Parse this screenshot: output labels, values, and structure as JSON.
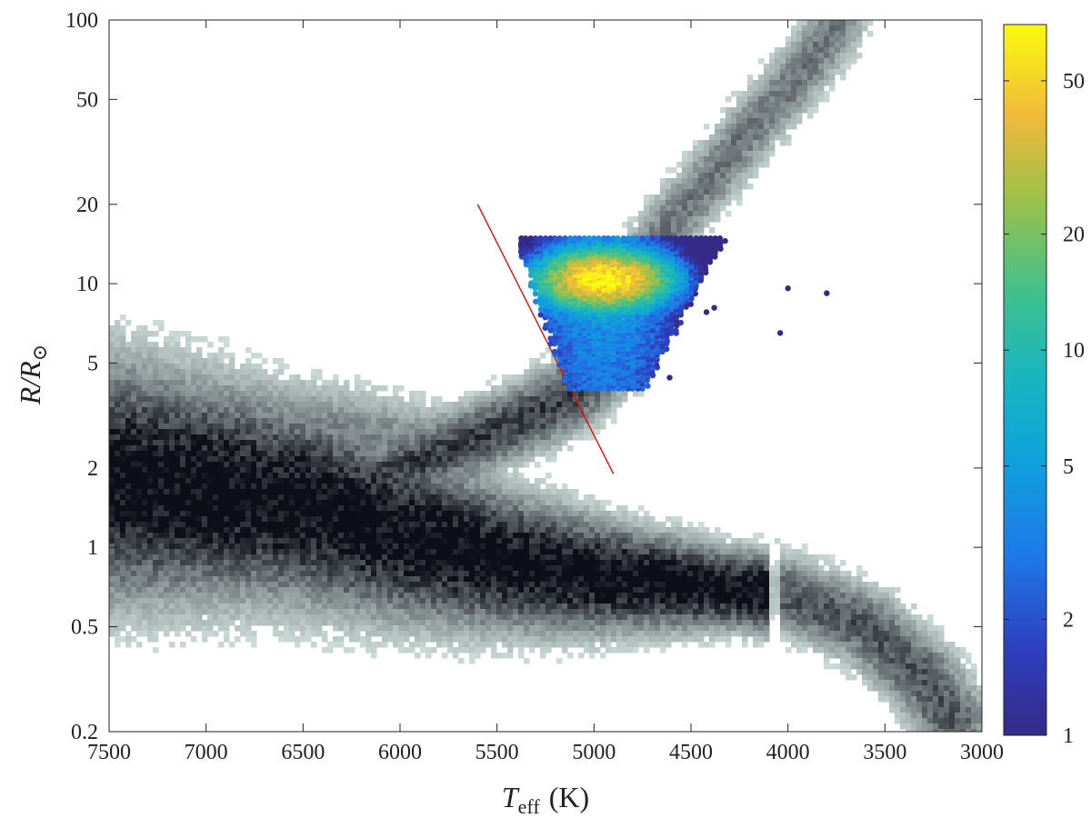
{
  "chart_data": {
    "type": "scatter",
    "title": "",
    "xlabel": {
      "main": "T",
      "sub": "eff",
      "unit": "(K)"
    },
    "ylabel": {
      "main": "R/R",
      "sub": "⊙"
    },
    "x_axis": {
      "range": [
        7500,
        3000
      ],
      "reversed": true,
      "ticks": [
        7500,
        7000,
        6500,
        6000,
        5500,
        5000,
        4500,
        4000,
        3500,
        3000
      ],
      "tick_labels": [
        "7500",
        "7000",
        "6500",
        "6000",
        "5500",
        "5000",
        "4500",
        "4000",
        "3500",
        "3000"
      ]
    },
    "y_axis": {
      "range": [
        0.2,
        100
      ],
      "scale": "log",
      "ticks": [
        0.2,
        0.5,
        1,
        2,
        5,
        10,
        20,
        50,
        100
      ],
      "tick_labels": [
        "0.2",
        "0.5",
        "1",
        "2",
        "5",
        "10",
        "20",
        "50",
        "100"
      ]
    },
    "grid": false,
    "background_density": {
      "type": "heatmap",
      "colormap": "grey (light teal-grey to near black)",
      "components": [
        {
          "name": "main-sequence",
          "points": [
            [
              7500,
              1.8
            ],
            [
              7000,
              1.65
            ],
            [
              6500,
              1.45
            ],
            [
              6000,
              1.12
            ],
            [
              5500,
              0.9
            ],
            [
              5000,
              0.78
            ],
            [
              4500,
              0.72
            ],
            [
              4000,
              0.66
            ],
            [
              3600,
              0.5
            ],
            [
              3300,
              0.32
            ],
            [
              3150,
              0.22
            ]
          ]
        },
        {
          "name": "subgiant-branch",
          "points": [
            [
              6300,
              1.6
            ],
            [
              6000,
              2.0
            ],
            [
              5600,
              2.6
            ],
            [
              5300,
              3.2
            ],
            [
              5100,
              3.9
            ],
            [
              4950,
              5.0
            ]
          ]
        },
        {
          "name": "red-giant-branch",
          "points": [
            [
              5000,
              5.5
            ],
            [
              4900,
              8
            ],
            [
              4750,
              12
            ],
            [
              4600,
              17
            ],
            [
              4400,
              25
            ],
            [
              4200,
              38
            ],
            [
              4000,
              55
            ],
            [
              3850,
              75
            ],
            [
              3750,
              95
            ]
          ]
        },
        {
          "name": "upper-main-sequence",
          "points": [
            [
              7400,
              3.8
            ],
            [
              7000,
              3.2
            ],
            [
              6500,
              2.8
            ],
            [
              6000,
              2.4
            ],
            [
              5700,
              2.1
            ]
          ]
        }
      ]
    },
    "series": [
      {
        "kind": "scatter-density",
        "colorbar": {
          "scale": "log",
          "range": [
            1,
            70
          ],
          "ticks": [
            1,
            2,
            5,
            10,
            20,
            50
          ],
          "tick_labels": [
            "1",
            "2",
            "5",
            "10",
            "20",
            "50"
          ],
          "colormap": "parula"
        },
        "grid": {
          "teff_min": 4300,
          "teff_max": 5400,
          "teff_step": 25,
          "r_min": 4,
          "r_max": 15,
          "r_log_step": 0.01
        },
        "peak": {
          "teff": 4950,
          "r": 10.5,
          "count": 65
        },
        "outliers": [
          {
            "teff": 4000,
            "r": 9.6
          },
          {
            "teff": 3800,
            "r": 9.2
          },
          {
            "teff": 4040,
            "r": 6.5
          },
          {
            "teff": 4380,
            "r": 8.1
          },
          {
            "teff": 4420,
            "r": 7.8
          },
          {
            "teff": 4610,
            "r": 4.4
          }
        ]
      },
      {
        "kind": "line",
        "color": "#e00000",
        "points": [
          [
            5600,
            20
          ],
          [
            4900,
            1.9
          ]
        ]
      }
    ],
    "colors": {
      "line": "#e00000",
      "axis": "#222222"
    }
  }
}
